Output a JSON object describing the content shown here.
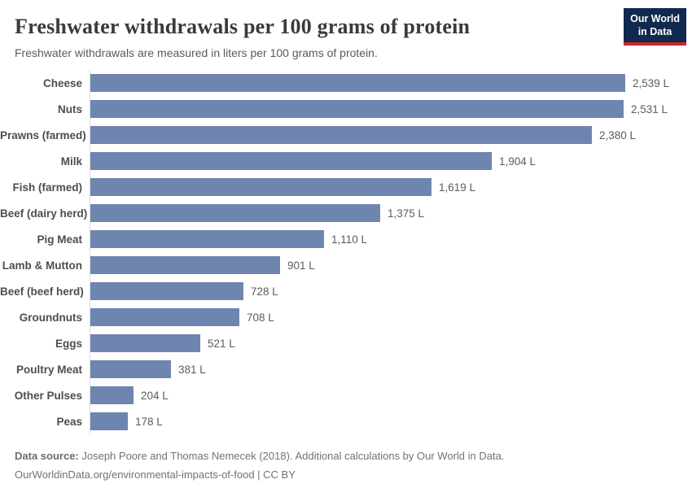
{
  "header": {
    "title": "Freshwater withdrawals per 100 grams of protein",
    "subtitle": "Freshwater withdrawals are measured in liters per 100 grams of protein.",
    "logo": {
      "line1": "Our World",
      "line2": "in Data",
      "bg_color": "#0f2a4e",
      "accent_color": "#d0262b"
    }
  },
  "chart_data": {
    "type": "bar",
    "orientation": "horizontal",
    "title": "Freshwater withdrawals per 100 grams of protein",
    "xlabel": "",
    "ylabel": "",
    "unit": "liters per 100 grams of protein",
    "grid": false,
    "legend": false,
    "xlim": [
      0,
      2539
    ],
    "bar_color": "#6e85af",
    "categories": [
      "Cheese",
      "Nuts",
      "Prawns (farmed)",
      "Milk",
      "Fish (farmed)",
      "Beef (dairy herd)",
      "Pig Meat",
      "Lamb & Mutton",
      "Beef (beef herd)",
      "Groundnuts",
      "Eggs",
      "Poultry Meat",
      "Other Pulses",
      "Peas"
    ],
    "values": [
      2539,
      2531,
      2380,
      1904,
      1619,
      1375,
      1110,
      901,
      728,
      708,
      521,
      381,
      204,
      178
    ],
    "value_labels": [
      "2,539 L",
      "2,531 L",
      "2,380 L",
      "1,904 L",
      "1,619 L",
      "1,375 L",
      "1,110 L",
      "901 L",
      "728 L",
      "708 L",
      "521 L",
      "381 L",
      "204 L",
      "178 L"
    ]
  },
  "footer": {
    "datasource_label": "Data source:",
    "datasource_text": " Joseph Poore and Thomas Nemecek (2018). Additional calculations by Our World in Data.",
    "url_line": "OurWorldinData.org/environmental-impacts-of-food | CC BY"
  }
}
